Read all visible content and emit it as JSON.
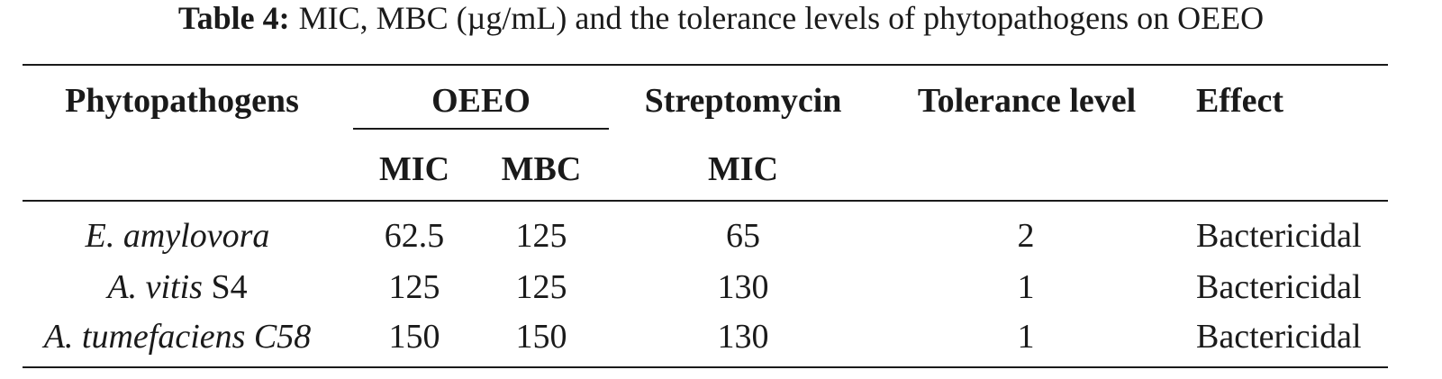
{
  "caption": {
    "label": "Table 4:",
    "text": "MIC, MBC (µg/mL) and the tolerance levels of phytopathogens on OEEO"
  },
  "table": {
    "headers": {
      "phytopathogens": "Phytopathogens",
      "oeeo": "OEEO",
      "streptomycin": "Streptomycin",
      "tolerance": "Tolerance level",
      "effect": "Effect",
      "oeeo_mic": "MIC",
      "oeeo_mbc": "MBC",
      "strep_mic": "MIC"
    },
    "rows": [
      {
        "name_italic": "E. amylovora",
        "name_plain": "",
        "mic": "62.5",
        "mbc": "125",
        "strep_mic": "65",
        "tolerance": "2",
        "effect": "Bactericidal"
      },
      {
        "name_italic": "A. vitis",
        "name_plain": " S4",
        "mic": "125",
        "mbc": "125",
        "strep_mic": "130",
        "tolerance": "1",
        "effect": "Bactericidal"
      },
      {
        "name_italic": "A. tumefaciens C58",
        "name_plain": "",
        "mic": "150",
        "mbc": "150",
        "strep_mic": "130",
        "tolerance": "1",
        "effect": "Bactericidal"
      }
    ]
  }
}
